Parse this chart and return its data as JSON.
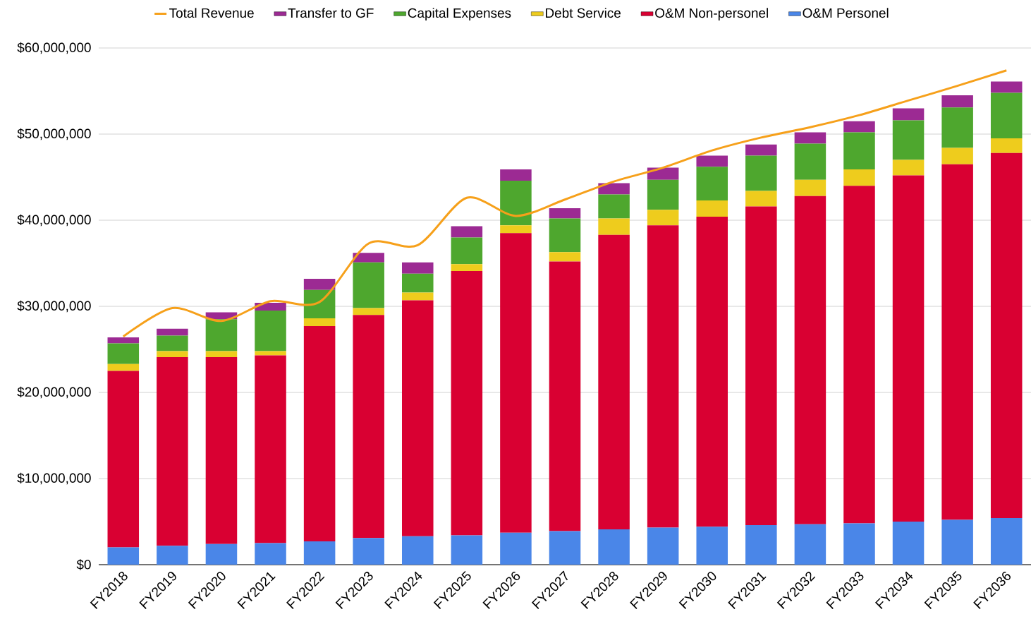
{
  "chart_data": {
    "type": "bar",
    "stacked": true,
    "categories": [
      "FY2018",
      "FY2019",
      "FY2020",
      "FY2021",
      "FY2022",
      "FY2023",
      "FY2024",
      "FY2025",
      "FY2026",
      "FY2027",
      "FY2028",
      "FY2029",
      "FY2030",
      "FY2031",
      "FY2032",
      "FY2033",
      "FY2034",
      "FY2035",
      "FY2036"
    ],
    "series": [
      {
        "name": "O&M Personel",
        "color": "#4a86e8",
        "values": [
          2000000,
          2200000,
          2400000,
          2500000,
          2700000,
          3100000,
          3300000,
          3400000,
          3700000,
          3900000,
          4100000,
          4300000,
          4400000,
          4600000,
          4700000,
          4800000,
          5000000,
          5200000,
          5400000
        ]
      },
      {
        "name": "O&M Non-personel",
        "color": "#d90032",
        "values": [
          20500000,
          21900000,
          21700000,
          21800000,
          25000000,
          25900000,
          27400000,
          30700000,
          34800000,
          31300000,
          34200000,
          35100000,
          36000000,
          37000000,
          38100000,
          39200000,
          40200000,
          41300000,
          42400000
        ]
      },
      {
        "name": "Debt Service",
        "color": "#eecc1d",
        "values": [
          800000,
          700000,
          700000,
          500000,
          900000,
          800000,
          900000,
          800000,
          900000,
          1100000,
          1900000,
          1800000,
          1900000,
          1800000,
          1900000,
          1900000,
          1800000,
          1900000,
          1700000
        ]
      },
      {
        "name": "Capital Expenses",
        "color": "#4ea72e",
        "values": [
          2400000,
          1800000,
          3700000,
          4700000,
          3300000,
          5300000,
          2200000,
          3100000,
          5200000,
          3900000,
          2800000,
          3500000,
          3900000,
          4100000,
          4200000,
          4300000,
          4600000,
          4700000,
          5300000
        ]
      },
      {
        "name": "Transfer to GF",
        "color": "#9c2a93",
        "values": [
          700000,
          800000,
          800000,
          900000,
          1300000,
          1100000,
          1300000,
          1300000,
          1300000,
          1200000,
          1300000,
          1400000,
          1300000,
          1300000,
          1300000,
          1300000,
          1400000,
          1400000,
          1300000
        ]
      },
      {
        "name": "Total Revenue",
        "type": "line",
        "color": "#f6a01a",
        "values": [
          26500000,
          29800000,
          28300000,
          30600000,
          30500000,
          37300000,
          37100000,
          42600000,
          40500000,
          42400000,
          44500000,
          46100000,
          48100000,
          49600000,
          50800000,
          52200000,
          53900000,
          55600000,
          57400000
        ]
      }
    ],
    "ylim": [
      0,
      60000000
    ],
    "yticks": [
      {
        "value": 0,
        "label": "$0"
      },
      {
        "value": 10000000,
        "label": "$10,000,000"
      },
      {
        "value": 20000000,
        "label": "$20,000,000"
      },
      {
        "value": 30000000,
        "label": "$30,000,000"
      },
      {
        "value": 40000000,
        "label": "$40,000,000"
      },
      {
        "value": 50000000,
        "label": "$50,000,000"
      },
      {
        "value": 60000000,
        "label": "$60,000,000"
      }
    ],
    "grid": "y",
    "legend": "top"
  }
}
